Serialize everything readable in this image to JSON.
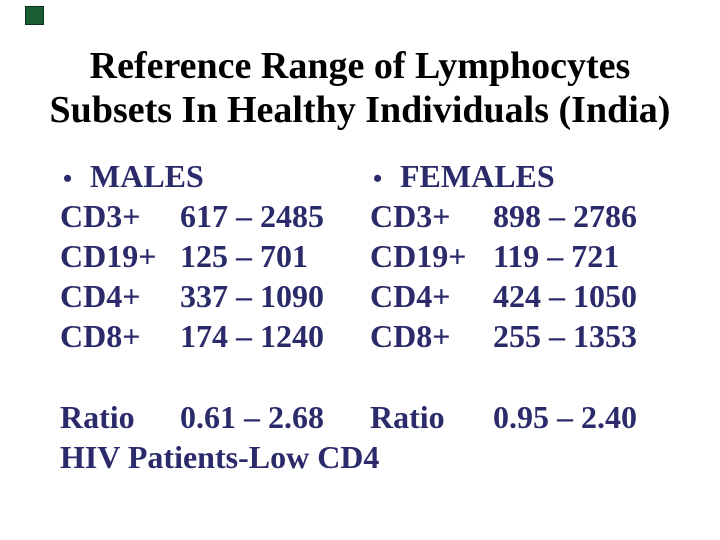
{
  "colors": {
    "title-color": "#000000",
    "body-color": "#2b2b6b",
    "corner-color": "#1a5c34"
  },
  "bullet_glyph": "•",
  "title": {
    "line1": "Reference Range of Lymphocytes",
    "line2": "Subsets In Healthy Individuals (India)"
  },
  "columns": [
    {
      "header": "MALES",
      "rows": [
        {
          "label": "CD3+",
          "value": "617 – 2485"
        },
        {
          "label": "CD19+",
          "value": "125 – 701"
        },
        {
          "label": "CD4+",
          "value": "337 – 1090"
        },
        {
          "label": "CD8+",
          "value": "174 – 1240"
        }
      ],
      "ratio_label": "Ratio",
      "ratio_value": "0.61 – 2.68",
      "footnote": "HIV Patients-Low CD4"
    },
    {
      "header": "FEMALES",
      "rows": [
        {
          "label": "CD3+",
          "value": "898 – 2786"
        },
        {
          "label": "CD19+",
          "value": "119 – 721"
        },
        {
          "label": "CD4+",
          "value": "424 – 1050"
        },
        {
          "label": "CD8+",
          "value": "255 – 1353"
        }
      ],
      "ratio_label": "Ratio",
      "ratio_value": "0.95 – 2.40",
      "footnote": ""
    }
  ]
}
